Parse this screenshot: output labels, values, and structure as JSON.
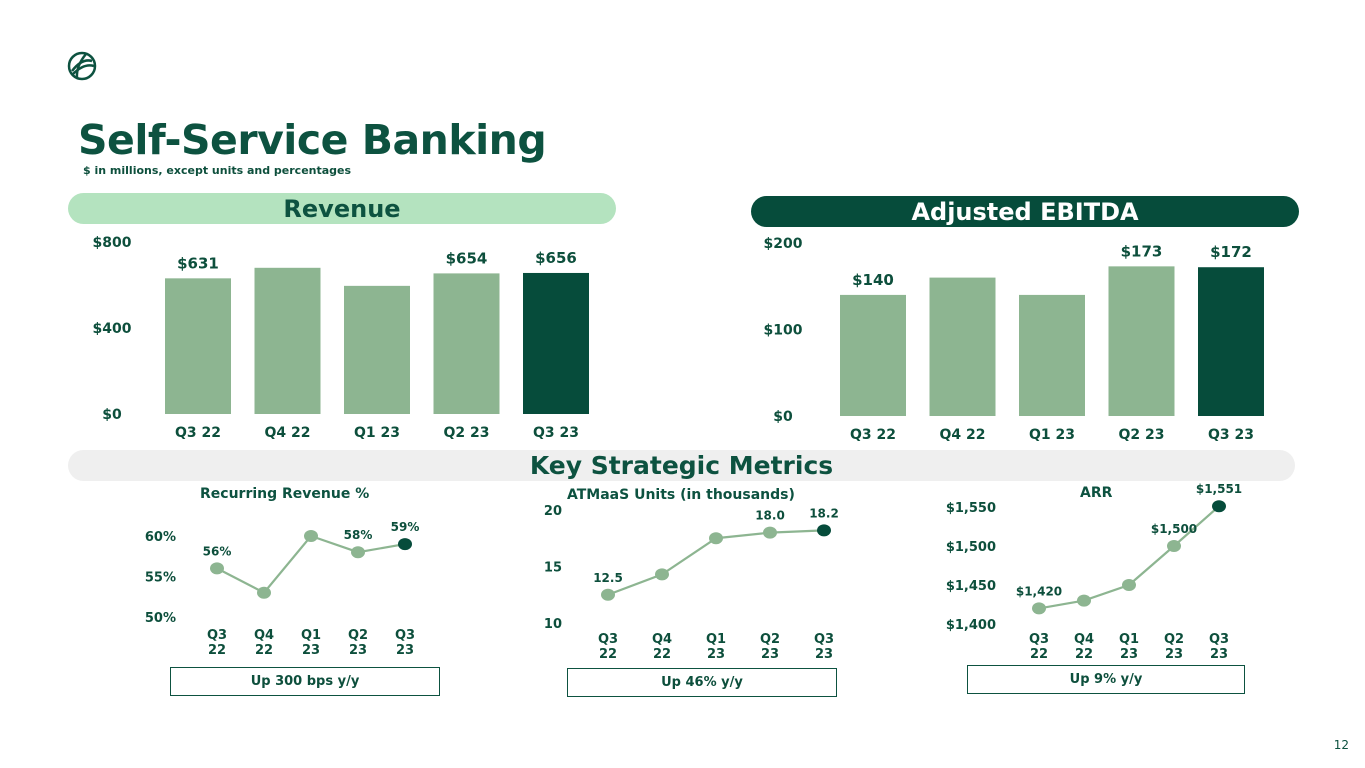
{
  "page": {
    "title": "Self-Service Banking",
    "subtitle": "$ in millions, except units and percentages",
    "page_number": "12",
    "logo_icon": "globe-icon"
  },
  "headers": {
    "revenue": "Revenue",
    "ebitda": "Adjusted EBITDA",
    "metrics": "Key Strategic Metrics"
  },
  "callouts": {
    "recurring": "Up 300 bps y/y",
    "atmaas": "Up 46% y/y",
    "arr": "Up 9% y/y"
  },
  "colors": {
    "light_bar": "#8db591",
    "dark_bar": "#064c3b",
    "title": "#0d5240"
  },
  "chart_data": [
    {
      "id": "revenue",
      "type": "bar",
      "categories": [
        "Q3 22",
        "Q4 22",
        "Q1 23",
        "Q2 23",
        "Q3 23"
      ],
      "values": [
        631,
        680,
        596,
        654,
        656
      ],
      "value_labels": [
        "$631",
        "",
        "",
        "$654",
        "$656"
      ],
      "yticks": [
        "$0",
        "$400",
        "$800"
      ],
      "ytick_values": [
        0,
        400,
        800
      ],
      "ylim": [
        0,
        800
      ],
      "highlight_index": 4
    },
    {
      "id": "ebitda",
      "type": "bar",
      "categories": [
        "Q3 22",
        "Q4 22",
        "Q1 23",
        "Q2 23",
        "Q3 23"
      ],
      "values": [
        140,
        160,
        140,
        173,
        172
      ],
      "value_labels": [
        "$140",
        "",
        "",
        "$173",
        "$172"
      ],
      "yticks": [
        "$0",
        "$100",
        "$200"
      ],
      "ytick_values": [
        0,
        100,
        200
      ],
      "ylim": [
        0,
        200
      ],
      "highlight_index": 4
    },
    {
      "id": "recurring",
      "type": "line",
      "title": "Recurring Revenue %",
      "categories": [
        [
          "Q3",
          "22"
        ],
        [
          "Q4",
          "22"
        ],
        [
          "Q1",
          "23"
        ],
        [
          "Q2",
          "23"
        ],
        [
          "Q3",
          "23"
        ]
      ],
      "values": [
        56,
        53,
        60,
        58,
        59
      ],
      "value_labels": [
        "56%",
        "",
        "",
        "58%",
        "59%"
      ],
      "yticks": [
        "50%",
        "55%",
        "60%"
      ],
      "ytick_values": [
        50,
        55,
        60
      ],
      "ylim": [
        50,
        60
      ],
      "highlight_index": 4
    },
    {
      "id": "atmaas",
      "type": "line",
      "title": "ATMaaS Units (in thousands)",
      "categories": [
        [
          "Q3",
          "22"
        ],
        [
          "Q4",
          "22"
        ],
        [
          "Q1",
          "23"
        ],
        [
          "Q2",
          "23"
        ],
        [
          "Q3",
          "23"
        ]
      ],
      "values": [
        12.5,
        14.3,
        17.5,
        18.0,
        18.2
      ],
      "value_labels": [
        "12.5",
        "",
        "",
        "18.0",
        "18.2"
      ],
      "yticks": [
        "10",
        "15",
        "20"
      ],
      "ytick_values": [
        10,
        15,
        20
      ],
      "ylim": [
        10,
        20
      ],
      "highlight_index": 4
    },
    {
      "id": "arr",
      "type": "line",
      "title": "ARR",
      "categories": [
        [
          "Q3",
          "22"
        ],
        [
          "Q4",
          "22"
        ],
        [
          "Q1",
          "23"
        ],
        [
          "Q2",
          "23"
        ],
        [
          "Q3",
          "23"
        ]
      ],
      "values": [
        1420,
        1430,
        1450,
        1500,
        1551
      ],
      "value_labels": [
        "$1,420",
        "",
        "",
        "$1,500",
        "$1,551"
      ],
      "yticks": [
        "$1,400",
        "$1,450",
        "$1,500",
        "$1,550"
      ],
      "ytick_values": [
        1400,
        1450,
        1500,
        1550
      ],
      "ylim": [
        1400,
        1550
      ],
      "highlight_index": 4
    }
  ]
}
